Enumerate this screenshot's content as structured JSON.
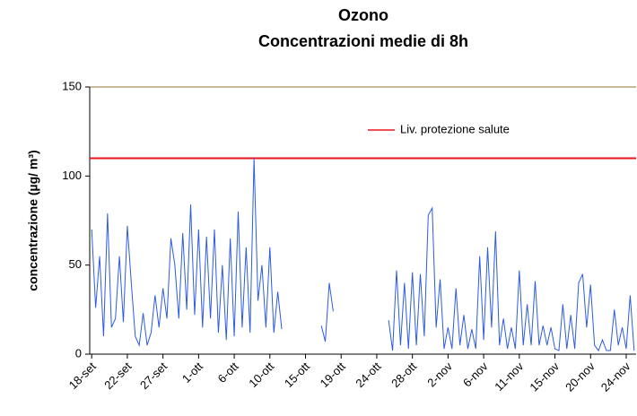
{
  "chart_data": {
    "type": "line",
    "title": "Ozono",
    "subtitle": "Concentrazioni medie di 8h",
    "y_label": "concentrazione (µg/ m³)",
    "categories": [
      "18-set",
      null,
      null,
      null,
      null,
      null,
      null,
      null,
      null,
      "22-set",
      null,
      null,
      null,
      null,
      null,
      null,
      null,
      null,
      "27-set",
      null,
      null,
      null,
      null,
      null,
      null,
      null,
      null,
      "1-ott",
      null,
      null,
      null,
      null,
      null,
      null,
      null,
      null,
      "6-ott",
      null,
      null,
      null,
      null,
      null,
      null,
      null,
      null,
      "10-ott",
      null,
      null,
      null,
      null,
      null,
      null,
      null,
      null,
      "15-ott",
      null,
      null,
      null,
      null,
      null,
      null,
      null,
      null,
      "19-ott",
      null,
      null,
      null,
      null,
      null,
      null,
      null,
      null,
      "24-ott",
      null,
      null,
      null,
      null,
      null,
      null,
      null,
      null,
      "28-ott",
      null,
      null,
      null,
      null,
      null,
      null,
      null,
      null,
      "2-nov",
      null,
      null,
      null,
      null,
      null,
      null,
      null,
      null,
      "6-nov",
      null,
      null,
      null,
      null,
      null,
      null,
      null,
      null,
      "11-nov",
      null,
      null,
      null,
      null,
      null,
      null,
      null,
      null,
      "15-nov",
      null,
      null,
      null,
      null,
      null,
      null,
      null,
      null,
      "20-nov",
      null,
      null,
      null,
      null,
      null,
      null,
      null,
      null,
      "24-nov",
      null,
      null
    ],
    "series": [
      {
        "name": "Ozono",
        "color": "#2d5be3",
        "values": [
          70,
          26,
          55,
          10,
          79,
          15,
          20,
          55,
          18,
          72,
          40,
          10,
          5,
          23,
          5,
          12,
          33,
          15,
          37,
          20,
          65,
          50,
          20,
          68,
          25,
          84,
          22,
          70,
          15,
          66,
          20,
          70,
          12,
          50,
          8,
          65,
          10,
          80,
          15,
          60,
          12,
          110,
          30,
          50,
          15,
          60,
          12,
          35,
          14,
          null,
          null,
          null,
          null,
          null,
          null,
          null,
          null,
          null,
          16,
          7,
          40,
          24,
          null,
          null,
          null,
          null,
          null,
          null,
          null,
          null,
          null,
          null,
          null,
          null,
          null,
          19,
          2,
          47,
          5,
          40,
          3,
          46,
          5,
          45,
          10,
          78,
          82,
          15,
          42,
          3,
          15,
          3,
          37,
          5,
          22,
          3,
          14,
          3,
          55,
          8,
          60,
          15,
          69,
          5,
          20,
          3,
          15,
          3,
          47,
          5,
          28,
          5,
          41,
          5,
          16,
          5,
          15,
          3,
          2,
          28,
          3,
          22,
          3,
          40,
          45,
          15,
          39,
          5,
          2,
          8,
          2,
          2,
          25,
          5,
          15,
          3,
          33,
          2
        ]
      }
    ],
    "threshold": {
      "name": "Liv. protezione salute",
      "value": 110,
      "color": "#e8161b"
    },
    "ylim": [
      0,
      150
    ],
    "yticks": [
      0,
      50,
      100,
      150
    ],
    "top_line_color": "#b5a27a"
  }
}
